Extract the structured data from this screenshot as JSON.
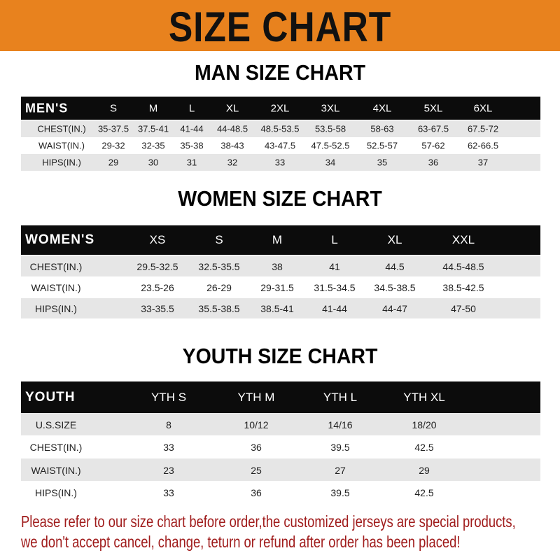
{
  "banner_title": "SIZE CHART",
  "men": {
    "title": "MAN SIZE CHART",
    "header": [
      "MEN'S",
      "S",
      "M",
      "L",
      "XL",
      "2XL",
      "3XL",
      "4XL",
      "5XL",
      "6XL"
    ],
    "rows": [
      [
        "CHEST(IN.)",
        "35-37.5",
        "37.5-41",
        "41-44",
        "44-48.5",
        "48.5-53.5",
        "53.5-58",
        "58-63",
        "63-67.5",
        "67.5-72"
      ],
      [
        "WAIST(IN.)",
        "29-32",
        "32-35",
        "35-38",
        "38-43",
        "43-47.5",
        "47.5-52.5",
        "52.5-57",
        "57-62",
        "62-66.5"
      ],
      [
        "HIPS(IN.)",
        "29",
        "30",
        "31",
        "32",
        "33",
        "34",
        "35",
        "36",
        "37"
      ]
    ]
  },
  "women": {
    "title": "WOMEN SIZE CHART",
    "header": [
      "WOMEN'S",
      "XS",
      "S",
      "M",
      "L",
      "XL",
      "XXL"
    ],
    "rows": [
      [
        "CHEST(IN.)",
        "29.5-32.5",
        "32.5-35.5",
        "38",
        "41",
        "44.5",
        "44.5-48.5"
      ],
      [
        "WAIST(IN.)",
        "23.5-26",
        "26-29",
        "29-31.5",
        "31.5-34.5",
        "34.5-38.5",
        "38.5-42.5"
      ],
      [
        "HIPS(IN.)",
        "33-35.5",
        "35.5-38.5",
        "38.5-41",
        "41-44",
        "44-47",
        "47-50"
      ]
    ]
  },
  "youth": {
    "title": "YOUTH SIZE CHART",
    "header": [
      "YOUTH",
      "YTH S",
      "YTH M",
      "YTH L",
      "YTH XL"
    ],
    "rows": [
      [
        "U.S.SIZE",
        "8",
        "10/12",
        "14/16",
        "18/20"
      ],
      [
        "CHEST(IN.)",
        "33",
        "36",
        "39.5",
        "42.5"
      ],
      [
        "WAIST(IN.)",
        "23",
        "25",
        "27",
        "29"
      ],
      [
        "HIPS(IN.)",
        "33",
        "36",
        "39.5",
        "42.5"
      ]
    ]
  },
  "footer": {
    "line1": "Please refer to our size chart before order,the customized jerseys are special products,",
    "line2": "we don't accept cancel, change, teturn or refund after order has been placed!"
  },
  "colors": {
    "banner": "#e8821e",
    "header_row": "#0c0c0c",
    "footer_text": "#a01c1c"
  }
}
